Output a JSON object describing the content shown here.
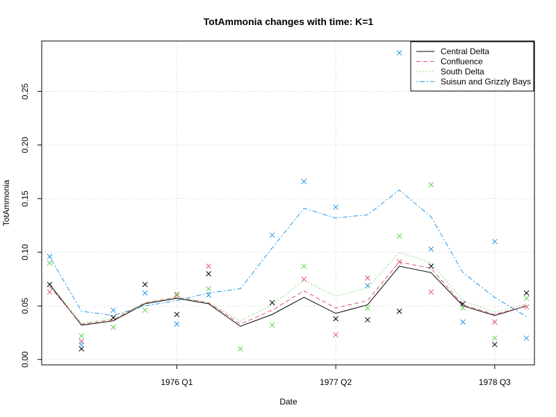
{
  "chart_data": {
    "type": "line",
    "title": "TotAmmonia changes with time: K=1",
    "xlabel": "Date",
    "ylabel": "TotAmmonia",
    "x_tick_labels": [
      "1976 Q1",
      "1977 Q2",
      "1978 Q3"
    ],
    "x_tick_positions": [
      5,
      10,
      15
    ],
    "y_ticks": [
      0.0,
      0.05,
      0.1,
      0.15,
      0.2,
      0.25
    ],
    "y_tick_labels": [
      "0.00",
      "0.05",
      "0.10",
      "0.15",
      "0.20",
      "0.25"
    ],
    "xlim": [
      0.75,
      16.25
    ],
    "ylim": [
      -0.005,
      0.297
    ],
    "grid": true,
    "legend_position": "top-right",
    "x": [
      1,
      2,
      3,
      4,
      5,
      6,
      7,
      8,
      9,
      10,
      11,
      12,
      13,
      14,
      15,
      16
    ],
    "series": [
      {
        "name": "Central Delta",
        "color": "#000000",
        "line_style": "solid",
        "fitted": [
          0.07,
          0.032,
          0.036,
          0.052,
          0.057,
          0.052,
          0.031,
          0.042,
          0.058,
          0.043,
          0.051,
          0.087,
          0.081,
          0.05,
          0.041,
          0.05
        ],
        "observed": [
          0.07,
          0.01,
          0.039,
          0.07,
          0.042,
          0.08,
          null,
          0.053,
          null,
          0.038,
          0.037,
          0.045,
          0.087,
          0.052,
          0.014,
          0.062
        ]
      },
      {
        "name": "Confluence",
        "color": "#DF536B",
        "line_style": "dashed",
        "fitted": [
          0.068,
          0.033,
          0.037,
          0.053,
          0.058,
          0.053,
          0.033,
          0.046,
          0.064,
          0.048,
          0.055,
          0.091,
          0.085,
          0.051,
          0.042,
          0.05
        ],
        "observed": [
          0.063,
          0.017,
          null,
          null,
          0.06,
          0.087,
          null,
          null,
          0.075,
          0.023,
          0.076,
          0.091,
          0.063,
          null,
          0.035,
          0.049
        ]
      },
      {
        "name": "South Delta",
        "color": "#61D04F",
        "line_style": "dotted",
        "fitted": [
          0.071,
          0.034,
          0.038,
          0.053,
          0.058,
          0.053,
          0.036,
          0.051,
          0.074,
          0.059,
          0.067,
          0.1,
          0.09,
          0.055,
          0.044,
          0.052
        ],
        "observed": [
          0.09,
          0.022,
          0.03,
          0.046,
          0.061,
          0.066,
          0.01,
          0.032,
          0.087,
          null,
          0.048,
          0.115,
          0.163,
          0.048,
          0.02,
          0.057
        ]
      },
      {
        "name": "Suisun and Grizzly Bays",
        "color": "#2297E6",
        "line_style": "dotdash",
        "fitted": [
          0.096,
          0.045,
          0.041,
          0.05,
          0.055,
          0.062,
          0.066,
          0.104,
          0.141,
          0.132,
          0.135,
          0.158,
          0.133,
          0.081,
          0.058,
          0.04
        ],
        "observed": [
          0.096,
          0.014,
          0.046,
          0.062,
          0.033,
          0.06,
          null,
          0.116,
          0.166,
          0.142,
          0.069,
          0.286,
          0.103,
          0.035,
          0.11,
          0.02
        ]
      }
    ]
  }
}
